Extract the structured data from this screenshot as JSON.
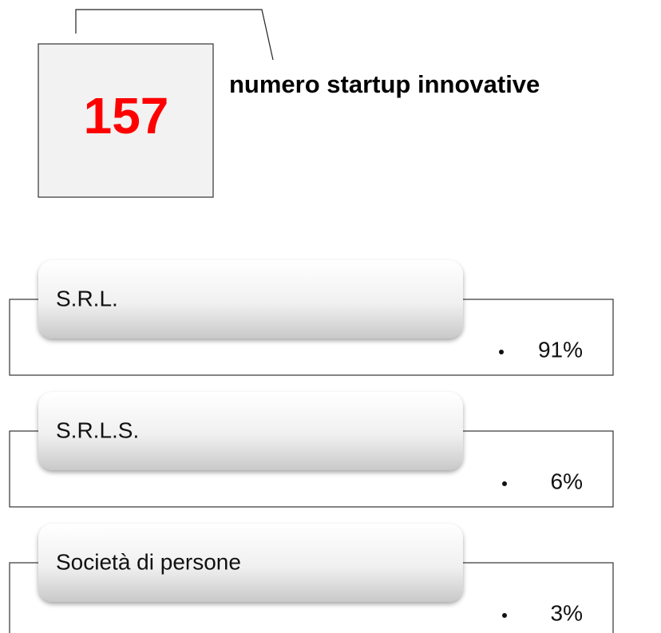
{
  "header": {
    "count": "157",
    "caption": "numero startup innovative"
  },
  "items": [
    {
      "label": "S.R.L.",
      "value": "91%"
    },
    {
      "label": "S.R.L.S.",
      "value": "6%"
    },
    {
      "label": "Società di persone",
      "value": "3%"
    }
  ]
}
